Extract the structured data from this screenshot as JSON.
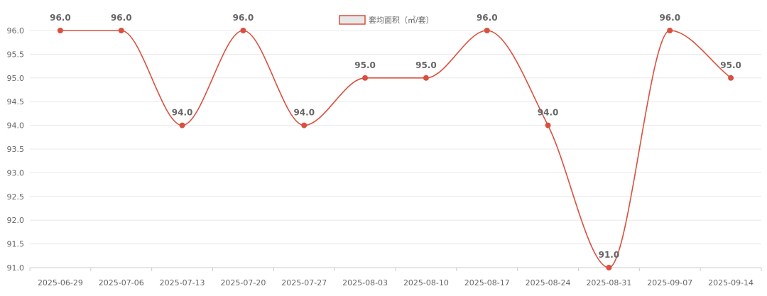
{
  "chart_data": {
    "type": "line",
    "title": "",
    "xlabel": "",
    "ylabel": "",
    "categories": [
      "2025-06-29",
      "2025-07-06",
      "2025-07-13",
      "2025-07-20",
      "2025-07-27",
      "2025-08-03",
      "2025-08-10",
      "2025-08-17",
      "2025-08-24",
      "2025-08-31",
      "2025-09-07",
      "2025-09-14"
    ],
    "series": [
      {
        "name": "套均面积（㎡/套）",
        "values": [
          96.0,
          96.0,
          94.0,
          96.0,
          94.0,
          95.0,
          95.0,
          96.0,
          94.0,
          91.0,
          96.0,
          95.0
        ],
        "data_labels": [
          "96.0",
          "96.0",
          "94.0",
          "96.0",
          "94.0",
          "95.0",
          "95.0",
          "96.0",
          "94.0",
          "91.0",
          "96.0",
          "95.0"
        ],
        "color": "#d9503f",
        "smooth": true
      }
    ],
    "ylim": [
      91.0,
      96.0
    ],
    "y_ticks": [
      "96.0",
      "95.5",
      "95.0",
      "94.5",
      "94.0",
      "93.5",
      "93.0",
      "92.5",
      "92.0",
      "91.5",
      "91.0"
    ],
    "grid": true,
    "legend_position": "top-center"
  },
  "colors": {
    "line": "#d9503f",
    "grid": "#e8e8e8",
    "axis": "#cccccc",
    "legend_fill": "#e8e8e8"
  }
}
